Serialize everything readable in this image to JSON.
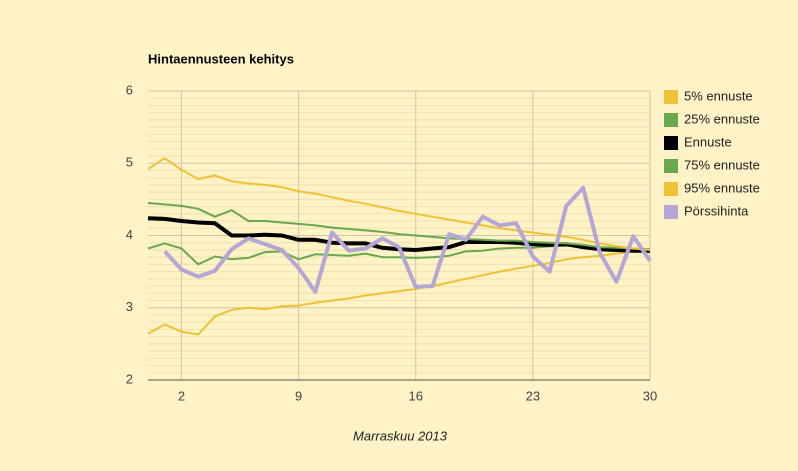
{
  "chart_data": {
    "type": "line",
    "title": "Hintaennusteen kehitys",
    "x_label": "Marraskuu 2013",
    "x": [
      0,
      1,
      2,
      3,
      4,
      5,
      6,
      7,
      8,
      9,
      10,
      11,
      12,
      13,
      14,
      15,
      16,
      17,
      18,
      19,
      20,
      21,
      22,
      23,
      24,
      25,
      26,
      27,
      28,
      29,
      30
    ],
    "xlim": [
      0,
      30
    ],
    "xticks": [
      2,
      9,
      16,
      23,
      30
    ],
    "ylim": [
      2,
      6
    ],
    "yticks": [
      2,
      3,
      4,
      5,
      6
    ],
    "grid": true,
    "legend": "right",
    "series": [
      {
        "name": "5% ennuste",
        "color": "#efc134",
        "width": 2,
        "values": [
          2.64,
          2.77,
          2.67,
          2.63,
          2.88,
          2.97,
          3.0,
          2.98,
          3.02,
          3.03,
          3.07,
          3.1,
          3.13,
          3.17,
          3.2,
          3.23,
          3.26,
          3.3,
          3.35,
          3.4,
          3.45,
          3.5,
          3.54,
          3.58,
          3.62,
          3.67,
          3.7,
          3.72,
          3.75,
          3.78,
          3.8
        ]
      },
      {
        "name": "25% ennuste",
        "color": "#6aa84f",
        "width": 2,
        "values": [
          3.82,
          3.89,
          3.82,
          3.6,
          3.71,
          3.67,
          3.69,
          3.77,
          3.78,
          3.67,
          3.74,
          3.73,
          3.72,
          3.75,
          3.7,
          3.7,
          3.69,
          3.7,
          3.72,
          3.78,
          3.79,
          3.82,
          3.83,
          3.83,
          3.85,
          3.86,
          3.84,
          3.81,
          3.8,
          3.8,
          3.79
        ]
      },
      {
        "name": "Ennuste",
        "color": "#000000",
        "width": 4,
        "values": [
          4.24,
          4.23,
          4.2,
          4.18,
          4.17,
          4.0,
          4.0,
          4.01,
          4.0,
          3.94,
          3.94,
          3.9,
          3.89,
          3.89,
          3.83,
          3.81,
          3.8,
          3.82,
          3.84,
          3.91,
          3.91,
          3.91,
          3.9,
          3.88,
          3.87,
          3.88,
          3.84,
          3.81,
          3.8,
          3.79,
          3.79
        ]
      },
      {
        "name": "75% ennuste",
        "color": "#6aa84f",
        "width": 2,
        "values": [
          4.45,
          4.43,
          4.41,
          4.37,
          4.26,
          4.35,
          4.2,
          4.2,
          4.18,
          4.16,
          4.14,
          4.11,
          4.09,
          4.07,
          4.05,
          4.02,
          4.0,
          3.98,
          3.96,
          3.95,
          3.94,
          3.93,
          3.93,
          3.91,
          3.9,
          3.89,
          3.87,
          3.84,
          3.83,
          3.82,
          3.81
        ]
      },
      {
        "name": "95% ennuste",
        "color": "#efc134",
        "width": 2,
        "values": [
          4.92,
          5.07,
          4.91,
          4.78,
          4.83,
          4.75,
          4.72,
          4.7,
          4.67,
          4.61,
          4.58,
          4.53,
          4.48,
          4.44,
          4.39,
          4.34,
          4.3,
          4.26,
          4.22,
          4.18,
          4.14,
          4.1,
          4.07,
          4.04,
          4.01,
          3.98,
          3.94,
          3.89,
          3.85,
          3.82,
          3.8
        ]
      },
      {
        "name": "Pörssihinta",
        "color": "#b4a7d6",
        "width": 4,
        "values": [
          null,
          3.78,
          3.53,
          3.43,
          3.51,
          3.81,
          3.96,
          3.88,
          3.8,
          3.55,
          3.22,
          4.04,
          3.79,
          3.82,
          3.96,
          3.84,
          3.29,
          3.3,
          4.02,
          3.94,
          4.26,
          4.14,
          4.17,
          3.71,
          3.5,
          4.41,
          4.66,
          3.76,
          3.36,
          3.99,
          3.65
        ]
      }
    ]
  }
}
